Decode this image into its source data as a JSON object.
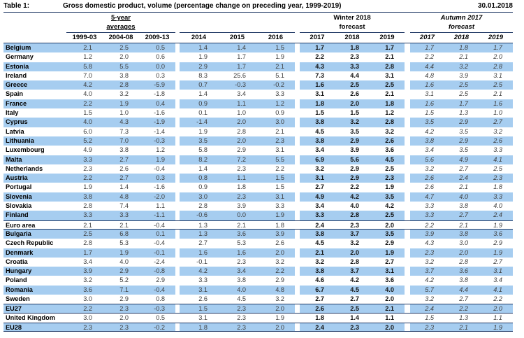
{
  "header": {
    "table_label": "Table 1:",
    "title": "Gross domestic product, volume (percentage change on preceding year, 1999-2019)",
    "date": "30.01.2018"
  },
  "columns": {
    "group1": {
      "label_line1": "5-year",
      "label_line2": "averages",
      "years": [
        "1999-03",
        "2004-08",
        "2009-13"
      ]
    },
    "group2": {
      "label_line1": "",
      "label_line2": "",
      "years": [
        "2014",
        "2015",
        "2016"
      ]
    },
    "group3": {
      "label_line1": "Winter 2018",
      "label_line2": "forecast",
      "years": [
        "2017",
        "2018",
        "2019"
      ]
    },
    "group4": {
      "label_line1": "Autumn 2017",
      "label_line2": "forecast",
      "years": [
        "2017",
        "2018",
        "2019"
      ]
    }
  },
  "rows": [
    {
      "name": "Belgium",
      "values": [
        "2.1",
        "2.5",
        "0.5",
        "1.4",
        "1.4",
        "1.5",
        "1.7",
        "1.8",
        "1.7",
        "1.7",
        "1.8",
        "1.7"
      ]
    },
    {
      "name": "Germany",
      "values": [
        "1.2",
        "2.0",
        "0.6",
        "1.9",
        "1.7",
        "1.9",
        "2.2",
        "2.3",
        "2.1",
        "2.2",
        "2.1",
        "2.0"
      ]
    },
    {
      "name": "Estonia",
      "values": [
        "5.8",
        "5.5",
        "0.0",
        "2.9",
        "1.7",
        "2.1",
        "4.3",
        "3.3",
        "2.8",
        "4.4",
        "3.2",
        "2.8"
      ]
    },
    {
      "name": "Ireland",
      "values": [
        "7.0",
        "3.8",
        "0.3",
        "8.3",
        "25.6",
        "5.1",
        "7.3",
        "4.4",
        "3.1",
        "4.8",
        "3.9",
        "3.1"
      ]
    },
    {
      "name": "Greece",
      "values": [
        "4.2",
        "2.8",
        "-5.9",
        "0.7",
        "-0.3",
        "-0.2",
        "1.6",
        "2.5",
        "2.5",
        "1.6",
        "2.5",
        "2.5"
      ]
    },
    {
      "name": "Spain",
      "values": [
        "4.0",
        "3.2",
        "-1.8",
        "1.4",
        "3.4",
        "3.3",
        "3.1",
        "2.6",
        "2.1",
        "3.1",
        "2.5",
        "2.1"
      ]
    },
    {
      "name": "France",
      "values": [
        "2.2",
        "1.9",
        "0.4",
        "0.9",
        "1.1",
        "1.2",
        "1.8",
        "2.0",
        "1.8",
        "1.6",
        "1.7",
        "1.6"
      ]
    },
    {
      "name": "Italy",
      "values": [
        "1.5",
        "1.0",
        "-1.6",
        "0.1",
        "1.0",
        "0.9",
        "1.5",
        "1.5",
        "1.2",
        "1.5",
        "1.3",
        "1.0"
      ]
    },
    {
      "name": "Cyprus",
      "values": [
        "4.0",
        "4.3",
        "-1.9",
        "-1.4",
        "2.0",
        "3.0",
        "3.8",
        "3.2",
        "2.8",
        "3.5",
        "2.9",
        "2.7"
      ]
    },
    {
      "name": "Latvia",
      "values": [
        "6.0",
        "7.3",
        "-1.4",
        "1.9",
        "2.8",
        "2.1",
        "4.5",
        "3.5",
        "3.2",
        "4.2",
        "3.5",
        "3.2"
      ]
    },
    {
      "name": "Lithuania",
      "values": [
        "5.2",
        "7.0",
        "-0.3",
        "3.5",
        "2.0",
        "2.3",
        "3.8",
        "2.9",
        "2.6",
        "3.8",
        "2.9",
        "2.6"
      ]
    },
    {
      "name": "Luxembourg",
      "values": [
        "4.9",
        "3.8",
        "1.2",
        "5.8",
        "2.9",
        "3.1",
        "3.4",
        "3.9",
        "3.6",
        "3.4",
        "3.5",
        "3.3"
      ]
    },
    {
      "name": "Malta",
      "values": [
        "3.3",
        "2.7",
        "1.9",
        "8.2",
        "7.2",
        "5.5",
        "6.9",
        "5.6",
        "4.5",
        "5.6",
        "4.9",
        "4.1"
      ]
    },
    {
      "name": "Netherlands",
      "values": [
        "2.3",
        "2.6",
        "-0.4",
        "1.4",
        "2.3",
        "2.2",
        "3.2",
        "2.9",
        "2.5",
        "3.2",
        "2.7",
        "2.5"
      ]
    },
    {
      "name": "Austria",
      "values": [
        "2.2",
        "2.7",
        "0.3",
        "0.8",
        "1.1",
        "1.5",
        "3.1",
        "2.9",
        "2.3",
        "2.6",
        "2.4",
        "2.3"
      ]
    },
    {
      "name": "Portugal",
      "values": [
        "1.9",
        "1.4",
        "-1.6",
        "0.9",
        "1.8",
        "1.5",
        "2.7",
        "2.2",
        "1.9",
        "2.6",
        "2.1",
        "1.8"
      ]
    },
    {
      "name": "Slovenia",
      "values": [
        "3.8",
        "4.8",
        "-2.0",
        "3.0",
        "2.3",
        "3.1",
        "4.9",
        "4.2",
        "3.5",
        "4.7",
        "4.0",
        "3.3"
      ]
    },
    {
      "name": "Slovakia",
      "values": [
        "2.8",
        "7.4",
        "1.1",
        "2.8",
        "3.9",
        "3.3",
        "3.4",
        "4.0",
        "4.2",
        "3.3",
        "3.8",
        "4.0"
      ]
    },
    {
      "name": "Finland",
      "values": [
        "3.3",
        "3.3",
        "-1.1",
        "-0.6",
        "0.0",
        "1.9",
        "3.3",
        "2.8",
        "2.5",
        "3.3",
        "2.7",
        "2.4"
      ]
    },
    {
      "name": "Euro area",
      "values": [
        "2.1",
        "2.1",
        "-0.4",
        "1.3",
        "2.1",
        "1.8",
        "2.4",
        "2.3",
        "2.0",
        "2.2",
        "2.1",
        "1.9"
      ],
      "sep": true
    },
    {
      "name": "Bulgaria",
      "values": [
        "2.5",
        "6.8",
        "0.1",
        "1.3",
        "3.6",
        "3.9",
        "3.8",
        "3.7",
        "3.5",
        "3.9",
        "3.8",
        "3.6"
      ]
    },
    {
      "name": "Czech Republic",
      "values": [
        "2.8",
        "5.3",
        "-0.4",
        "2.7",
        "5.3",
        "2.6",
        "4.5",
        "3.2",
        "2.9",
        "4.3",
        "3.0",
        "2.9"
      ]
    },
    {
      "name": "Denmark",
      "values": [
        "1.7",
        "1.9",
        "-0.1",
        "1.6",
        "1.6",
        "2.0",
        "2.1",
        "2.0",
        "1.9",
        "2.3",
        "2.0",
        "1.9"
      ]
    },
    {
      "name": "Croatia",
      "values": [
        "3.4",
        "4.0",
        "-2.4",
        "-0.1",
        "2.3",
        "3.2",
        "3.2",
        "2.8",
        "2.7",
        "3.2",
        "2.8",
        "2.7"
      ]
    },
    {
      "name": "Hungary",
      "values": [
        "3.9",
        "2.9",
        "-0.8",
        "4.2",
        "3.4",
        "2.2",
        "3.8",
        "3.7",
        "3.1",
        "3.7",
        "3.6",
        "3.1"
      ]
    },
    {
      "name": "Poland",
      "values": [
        "3.2",
        "5.2",
        "2.9",
        "3.3",
        "3.8",
        "2.9",
        "4.6",
        "4.2",
        "3.6",
        "4.2",
        "3.8",
        "3.4"
      ]
    },
    {
      "name": "Romania",
      "values": [
        "3.6",
        "7.1",
        "-0.4",
        "3.1",
        "4.0",
        "4.8",
        "6.7",
        "4.5",
        "4.0",
        "5.7",
        "4.4",
        "4.1"
      ]
    },
    {
      "name": "Sweden",
      "values": [
        "3.0",
        "2.9",
        "0.8",
        "2.6",
        "4.5",
        "3.2",
        "2.7",
        "2.7",
        "2.0",
        "3.2",
        "2.7",
        "2.2"
      ]
    },
    {
      "name": "EU27",
      "values": [
        "2.2",
        "2.3",
        "-0.3",
        "1.5",
        "2.3",
        "2.0",
        "2.6",
        "2.5",
        "2.1",
        "2.4",
        "2.2",
        "2.0"
      ],
      "sep": true
    },
    {
      "name": "United Kingdom",
      "values": [
        "3.0",
        "2.0",
        "0.5",
        "3.1",
        "2.3",
        "1.9",
        "1.8",
        "1.4",
        "1.1",
        "1.5",
        "1.3",
        "1.1"
      ]
    },
    {
      "name": "EU28",
      "values": [
        "2.3",
        "2.3",
        "-0.2",
        "1.8",
        "2.3",
        "2.0",
        "2.4",
        "2.3",
        "2.0",
        "2.3",
        "2.1",
        "1.9"
      ],
      "sep": true
    }
  ],
  "colors": {
    "band_blue": "#a6cdf0",
    "separator_navy": "#1f3864"
  }
}
